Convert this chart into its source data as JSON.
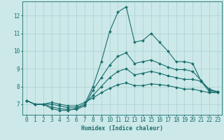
{
  "xlabel": "Humidex (Indice chaleur)",
  "xlim": [
    -0.5,
    23.5
  ],
  "ylim": [
    6.4,
    12.8
  ],
  "xtick_labels": [
    "0",
    "1",
    "2",
    "3",
    "4",
    "5",
    "6",
    "7",
    "8",
    "9",
    "10",
    "11",
    "12",
    "13",
    "14",
    "15",
    "16",
    "17",
    "18",
    "19",
    "20",
    "21",
    "22",
    "23"
  ],
  "ytick_labels": [
    "7",
    "8",
    "9",
    "10",
    "11",
    "12"
  ],
  "ytick_vals": [
    7,
    8,
    9,
    10,
    11,
    12
  ],
  "bg_color": "#cce8e8",
  "line_color": "#1a6e6e",
  "grid_color": "#aad0d0",
  "lines": [
    {
      "x": [
        0,
        1,
        2,
        3,
        4,
        5,
        6,
        7,
        8,
        9,
        10,
        11,
        12,
        13,
        14,
        15,
        16,
        17,
        18,
        19,
        20,
        21,
        22,
        23
      ],
      "y": [
        7.2,
        7.0,
        7.0,
        6.75,
        6.65,
        6.65,
        6.75,
        7.0,
        8.0,
        9.4,
        11.1,
        12.2,
        12.5,
        10.5,
        10.6,
        11.0,
        10.5,
        10.0,
        9.4,
        9.4,
        9.3,
        8.3,
        7.7,
        7.7
      ]
    },
    {
      "x": [
        0,
        1,
        2,
        3,
        4,
        5,
        6,
        7,
        8,
        9,
        10,
        11,
        12,
        13,
        14,
        15,
        16,
        17,
        18,
        19,
        20,
        21,
        22,
        23
      ],
      "y": [
        7.2,
        7.0,
        7.0,
        6.85,
        6.75,
        6.7,
        6.7,
        6.9,
        7.8,
        8.5,
        9.2,
        9.7,
        9.9,
        9.3,
        9.4,
        9.5,
        9.3,
        9.1,
        8.95,
        8.95,
        8.85,
        8.35,
        7.8,
        7.7
      ]
    },
    {
      "x": [
        0,
        1,
        2,
        3,
        4,
        5,
        6,
        7,
        8,
        9,
        10,
        11,
        12,
        13,
        14,
        15,
        16,
        17,
        18,
        19,
        20,
        21,
        22,
        23
      ],
      "y": [
        7.2,
        7.0,
        7.0,
        7.0,
        6.9,
        6.8,
        6.8,
        7.0,
        7.5,
        8.0,
        8.5,
        8.85,
        9.0,
        8.65,
        8.75,
        8.85,
        8.75,
        8.6,
        8.5,
        8.4,
        8.4,
        8.3,
        7.85,
        7.7
      ]
    },
    {
      "x": [
        0,
        1,
        2,
        3,
        4,
        5,
        6,
        7,
        8,
        9,
        10,
        11,
        12,
        13,
        14,
        15,
        16,
        17,
        18,
        19,
        20,
        21,
        22,
        23
      ],
      "y": [
        7.2,
        7.0,
        7.0,
        7.1,
        7.0,
        6.9,
        6.9,
        7.1,
        7.35,
        7.65,
        7.9,
        8.1,
        8.2,
        8.05,
        8.05,
        8.15,
        8.1,
        8.05,
        7.95,
        7.85,
        7.85,
        7.75,
        7.65,
        7.65
      ]
    }
  ],
  "label_fontsize": 5.8,
  "tick_fontsize": 5.5
}
